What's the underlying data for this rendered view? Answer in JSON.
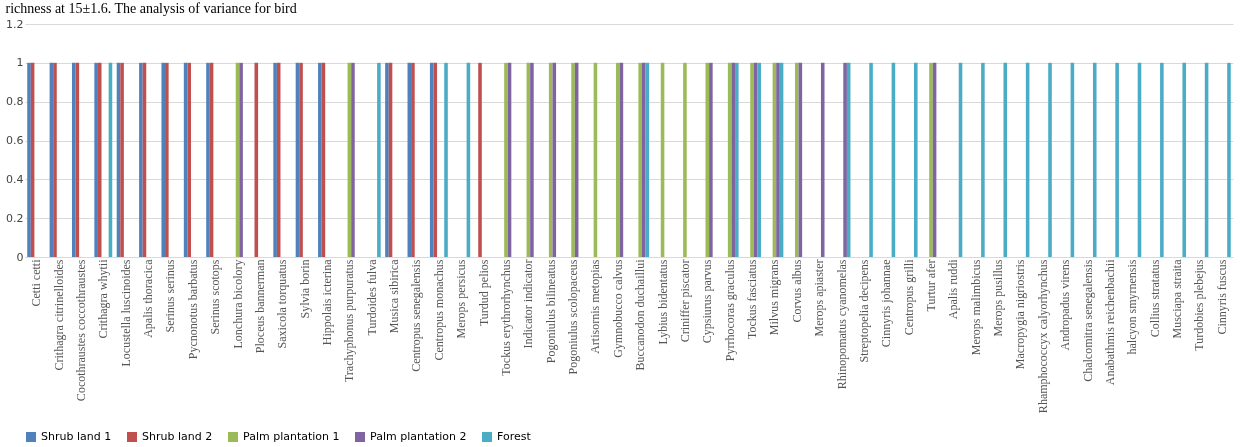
{
  "chart_data": {
    "type": "bar",
    "annotations": [
      "richness at 15±1.6. The analysis of variance for bird"
    ],
    "categories": [
      "Cetti cetti",
      "Crithagra citrinelloides",
      "Cocothraustes coccothraustes",
      "Crithagra whytii",
      "Locustella luscinoides",
      "Apalis thoracica",
      "Serinus serinus",
      "Pycnonotus barbatus",
      "Serinus scotops",
      "Lonchura bicolory",
      "Ploceus bannerman",
      "Saxicola torquatus",
      "Sylvia borin",
      "Hippolais icterina",
      "Trachyphonus purpuratus",
      "Turdoides fulva",
      "Musica sibirica",
      "Centropus senegalensis",
      "Centropus monachus",
      "Merops persicus",
      "Turdud pelios",
      "Tockus erythrorhynchus",
      "Indicator indicator",
      "Pogoniulus bilineatus",
      "Pogoniulus scolopaceus",
      "Artisornis metopias",
      "Gymnobucco calvus",
      "Buccanodon duchaillui",
      "Lybius bidentatus",
      "Criniffer piscator",
      "Cypsiurus parvus",
      "Pyrrhocoras graculus",
      "Tockus fasciatus",
      "Milvus migrans",
      "Corvus albus",
      "Merops apiaster",
      "Rhinopomatus cyanomelas",
      "Streptopelia decipens",
      "Cinnyris johannae",
      "Centropus grilli",
      "Turtur afer",
      "Apalis ruddi",
      "Merops malimbicus",
      "Merops pusillus",
      "Macropygia nigriostris",
      "Rhamphococcyx calyorhynchus",
      "Andropadus virens",
      "Chalcomitra senegalensis",
      "Anabathmis reichenbachii",
      "halcyon smyrnensis",
      "Collius stratatus",
      "Musciapa straita",
      "Turdobies plebejus",
      "Cinnyris fuscus"
    ],
    "series": [
      {
        "name": "Shrub land 1",
        "color": "#4f81bd",
        "values": [
          1,
          1,
          1,
          1,
          1,
          1,
          1,
          1,
          1,
          0,
          0,
          1,
          1,
          1,
          0,
          0,
          1,
          1,
          1,
          0,
          0,
          0,
          0,
          0,
          0,
          0,
          0,
          0,
          0,
          0,
          0,
          0,
          0,
          0,
          0,
          0,
          0,
          0,
          0,
          0,
          0,
          0,
          0,
          0,
          0,
          0,
          0,
          0,
          0,
          0,
          0,
          0,
          0,
          0
        ]
      },
      {
        "name": "Shrub land 2",
        "color": "#c0504d",
        "values": [
          1,
          1,
          1,
          1,
          1,
          1,
          1,
          1,
          1,
          0,
          1,
          1,
          1,
          1,
          0,
          0,
          1,
          1,
          1,
          0,
          1,
          0,
          0,
          0,
          0,
          0,
          0,
          0,
          0,
          0,
          0,
          0,
          0,
          0,
          0,
          0,
          0,
          0,
          0,
          0,
          0,
          0,
          0,
          0,
          0,
          0,
          0,
          0,
          0,
          0,
          0,
          0,
          0,
          0
        ]
      },
      {
        "name": "Palm plantation 1",
        "color": "#9bbb59",
        "values": [
          0,
          0,
          0,
          0,
          0,
          0,
          0,
          0,
          0,
          1,
          0,
          0,
          0,
          0,
          1,
          0,
          0,
          0,
          0,
          0,
          0,
          1,
          1,
          1,
          1,
          1,
          1,
          1,
          1,
          1,
          1,
          1,
          1,
          1,
          1,
          0,
          0,
          0,
          0,
          0,
          1,
          0,
          0,
          0,
          0,
          0,
          0,
          0,
          0,
          0,
          0,
          0,
          0,
          0
        ]
      },
      {
        "name": "Palm plantation 2",
        "color": "#8064a2",
        "values": [
          0,
          0,
          0,
          0,
          0,
          0,
          0,
          0,
          0,
          1,
          0,
          0,
          0,
          0,
          1,
          0,
          0,
          0,
          0,
          0,
          0,
          1,
          1,
          1,
          1,
          0,
          1,
          1,
          0,
          0,
          1,
          1,
          1,
          1,
          1,
          1,
          1,
          0,
          0,
          0,
          1,
          0,
          0,
          0,
          0,
          0,
          0,
          0,
          0,
          0,
          0,
          0,
          0,
          0
        ]
      },
      {
        "name": "Forest",
        "color": "#4bacc6",
        "values": [
          0,
          0,
          0,
          1,
          0,
          0,
          0,
          0,
          0,
          0,
          0,
          0,
          0,
          0,
          0,
          1,
          0,
          0,
          1,
          1,
          0,
          0,
          0,
          0,
          0,
          0,
          0,
          1,
          0,
          0,
          0,
          1,
          1,
          1,
          0,
          0,
          1,
          1,
          1,
          1,
          0,
          1,
          1,
          1,
          1,
          1,
          1,
          1,
          1,
          1,
          1,
          1,
          1,
          1
        ]
      }
    ],
    "ylim": [
      0,
      1.2
    ],
    "yticks": [
      0,
      0.2,
      0.4,
      0.6,
      0.8,
      1,
      1.2
    ],
    "grid": "y",
    "legend": "bottom"
  }
}
